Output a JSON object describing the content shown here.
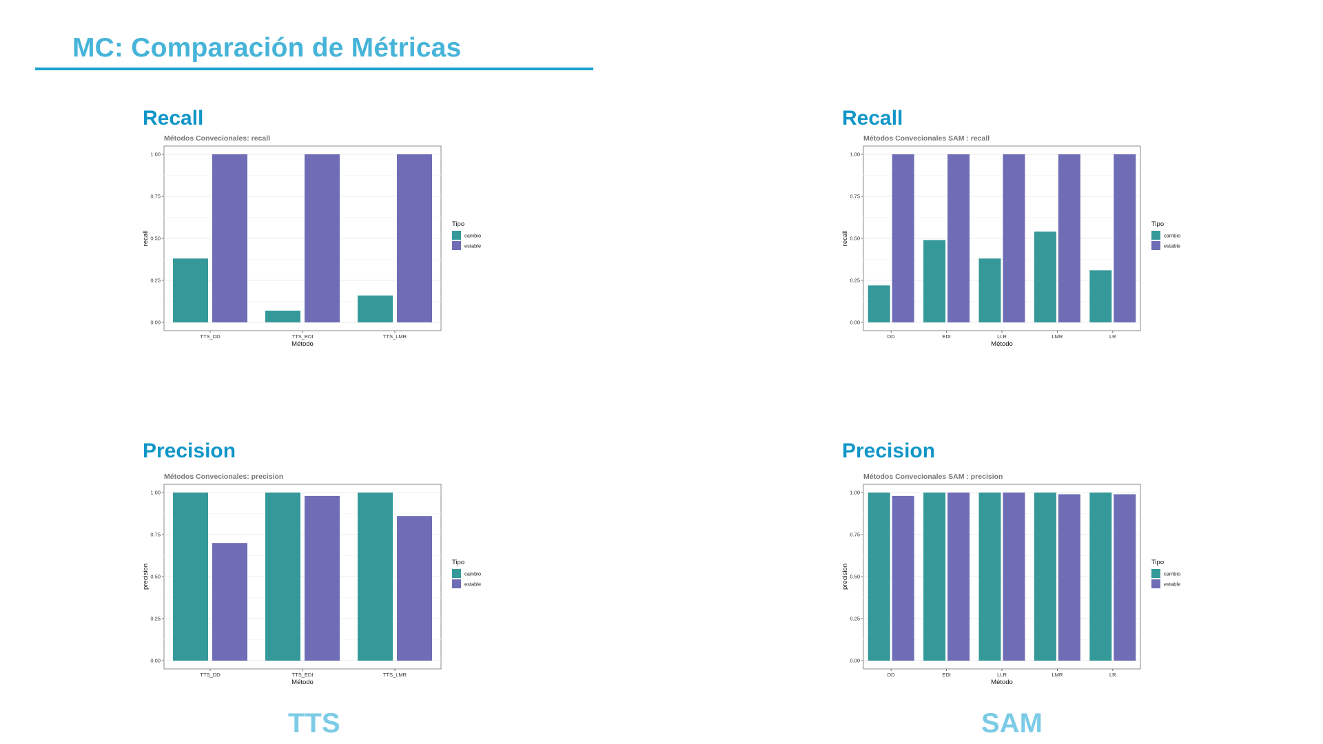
{
  "slide": {
    "title": "MC: Comparación de Métricas",
    "group_left": "TTS",
    "group_right": "SAM"
  },
  "panels": {
    "tts_recall_heading": "Recall",
    "sam_recall_heading": "Recall",
    "tts_precision_heading": "Precision",
    "sam_precision_heading": "Precision"
  },
  "colors": {
    "cambio": "#35999a",
    "estable": "#6f6db6"
  },
  "chart_data": [
    {
      "type": "bar",
      "title": "Métodos Convecionales: recall",
      "xlabel": "Método",
      "ylabel": "recall",
      "categories": [
        "TTS_DD",
        "TTS_EDI",
        "TTS_LMR"
      ],
      "series": [
        {
          "name": "cambio",
          "values": [
            0.38,
            0.07,
            0.16
          ]
        },
        {
          "name": "estable",
          "values": [
            1.0,
            1.0,
            1.0
          ]
        }
      ],
      "ylim": [
        0,
        1
      ],
      "yticks": [
        "0.00",
        "0.25",
        "0.50",
        "0.75",
        "1.00"
      ],
      "legend_title": "Tipo",
      "legend_position": "right",
      "grid": true
    },
    {
      "type": "bar",
      "title": "Métodos Convecionales SAM : recall",
      "xlabel": "Método",
      "ylabel": "recall",
      "categories": [
        "DD",
        "EDI",
        "LLR",
        "LMR",
        "LR"
      ],
      "series": [
        {
          "name": "cambio",
          "values": [
            0.22,
            0.49,
            0.38,
            0.54,
            0.31
          ]
        },
        {
          "name": "estable",
          "values": [
            1.0,
            1.0,
            1.0,
            1.0,
            1.0
          ]
        }
      ],
      "ylim": [
        0,
        1
      ],
      "yticks": [
        "0.00",
        "0.25",
        "0.50",
        "0.75",
        "1.00"
      ],
      "legend_title": "Tipo",
      "legend_position": "right",
      "grid": true
    },
    {
      "type": "bar",
      "title": "Métodos Convecionales: precision",
      "xlabel": "Método",
      "ylabel": "precision",
      "categories": [
        "TTS_DD",
        "TTS_EDI",
        "TTS_LMR"
      ],
      "series": [
        {
          "name": "cambio",
          "values": [
            1.0,
            1.0,
            1.0
          ]
        },
        {
          "name": "estable",
          "values": [
            0.7,
            0.98,
            0.86
          ]
        }
      ],
      "ylim": [
        0,
        1
      ],
      "yticks": [
        "0.00",
        "0.25",
        "0.50",
        "0.75",
        "1.00"
      ],
      "legend_title": "Tipo",
      "legend_position": "right",
      "grid": true
    },
    {
      "type": "bar",
      "title": "Métodos Convecionales SAM : precision",
      "xlabel": "Método",
      "ylabel": "precision",
      "categories": [
        "DD",
        "EDI",
        "LLR",
        "LMR",
        "LR"
      ],
      "series": [
        {
          "name": "cambio",
          "values": [
            1.0,
            1.0,
            1.0,
            1.0,
            1.0
          ]
        },
        {
          "name": "estable",
          "values": [
            0.98,
            1.0,
            1.0,
            0.99,
            0.99
          ]
        }
      ],
      "ylim": [
        0,
        1
      ],
      "yticks": [
        "0.00",
        "0.25",
        "0.50",
        "0.75",
        "1.00"
      ],
      "legend_title": "Tipo",
      "legend_position": "right",
      "grid": true
    }
  ]
}
